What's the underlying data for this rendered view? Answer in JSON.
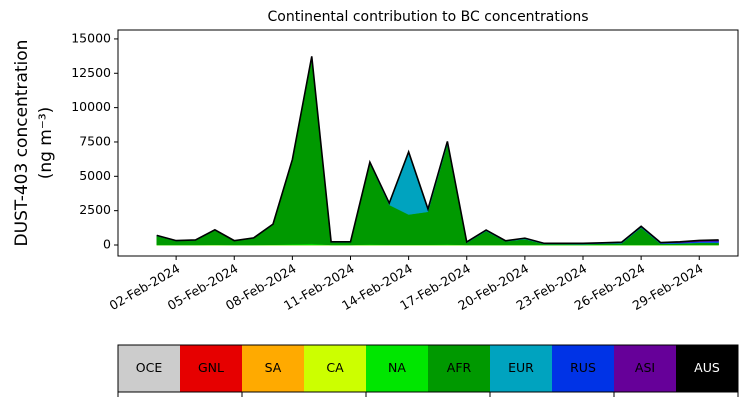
{
  "chart_data": {
    "type": "stacked_area",
    "title": "Continental contribution to BC concentrations",
    "y_label": [
      "DUST-403 concentration",
      "(ng m⁻³)"
    ],
    "x": [
      "2024-02-01",
      "2024-02-02",
      "2024-02-03",
      "2024-02-04",
      "2024-02-05",
      "2024-02-06",
      "2024-02-07",
      "2024-02-08",
      "2024-02-09",
      "2024-02-10",
      "2024-02-11",
      "2024-02-12",
      "2024-02-13",
      "2024-02-14",
      "2024-02-15",
      "2024-02-16",
      "2024-02-17",
      "2024-02-18",
      "2024-02-19",
      "2024-02-20",
      "2024-02-21",
      "2024-02-22",
      "2024-02-23",
      "2024-02-24",
      "2024-02-25",
      "2024-02-26",
      "2024-02-27",
      "2024-02-28",
      "2024-02-29",
      "2024-03-01"
    ],
    "xlim": [
      "2024-01-30",
      "2024-03-02"
    ],
    "xticks": [
      {
        "value": "2024-02-02",
        "label": "02-Feb-2024"
      },
      {
        "value": "2024-02-05",
        "label": "05-Feb-2024"
      },
      {
        "value": "2024-02-08",
        "label": "08-Feb-2024"
      },
      {
        "value": "2024-02-11",
        "label": "11-Feb-2024"
      },
      {
        "value": "2024-02-14",
        "label": "14-Feb-2024"
      },
      {
        "value": "2024-02-17",
        "label": "17-Feb-2024"
      },
      {
        "value": "2024-02-20",
        "label": "20-Feb-2024"
      },
      {
        "value": "2024-02-23",
        "label": "23-Feb-2024"
      },
      {
        "value": "2024-02-26",
        "label": "26-Feb-2024"
      },
      {
        "value": "2024-02-29",
        "label": "29-Feb-2024"
      }
    ],
    "ylim": [
      -800,
      15650
    ],
    "yticks": [
      0,
      2500,
      5000,
      7500,
      10000,
      12500,
      15000
    ],
    "legend": "bottom",
    "series": [
      {
        "name": "OCE",
        "color": "#cccccc",
        "values": [
          0,
          0,
          0,
          0,
          0,
          0,
          0,
          0,
          0,
          0,
          0,
          0,
          0,
          0,
          0,
          0,
          0,
          0,
          0,
          0,
          0,
          0,
          0,
          0,
          0,
          0,
          0,
          0,
          0,
          0
        ]
      },
      {
        "name": "GNL",
        "color": "#e60000",
        "values": [
          0,
          0,
          0,
          0,
          0,
          0,
          0,
          0,
          0,
          0,
          0,
          0,
          0,
          0,
          0,
          0,
          0,
          0,
          0,
          0,
          0,
          0,
          0,
          0,
          0,
          0,
          0,
          0,
          0,
          0
        ]
      },
      {
        "name": "SA",
        "color": "#ffaa00",
        "values": [
          0,
          0,
          0,
          0,
          0,
          0,
          0,
          0,
          0,
          0,
          0,
          0,
          0,
          0,
          0,
          0,
          0,
          0,
          0,
          0,
          0,
          0,
          0,
          0,
          0,
          0,
          0,
          0,
          0,
          0
        ]
      },
      {
        "name": "CA",
        "color": "#ccff00",
        "values": [
          0,
          0,
          0,
          0,
          0,
          0,
          0,
          0,
          0,
          0,
          0,
          0,
          0,
          0,
          0,
          0,
          0,
          0,
          0,
          0,
          0,
          0,
          0,
          0,
          0,
          0,
          0,
          0,
          0,
          0
        ]
      },
      {
        "name": "NA",
        "color": "#00e600",
        "values": [
          10,
          10,
          10,
          20,
          10,
          10,
          20,
          50,
          80,
          10,
          10,
          40,
          20,
          20,
          20,
          40,
          10,
          10,
          10,
          10,
          10,
          10,
          10,
          10,
          10,
          10,
          10,
          10,
          10,
          10
        ]
      },
      {
        "name": "AFR",
        "color": "#009900",
        "values": [
          650,
          280,
          330,
          1050,
          280,
          480,
          1450,
          6100,
          13500,
          180,
          180,
          5900,
          2900,
          2200,
          2400,
          7300,
          150,
          1000,
          250,
          420,
          60,
          60,
          50,
          90,
          120,
          1250,
          80,
          100,
          150,
          150
        ]
      },
      {
        "name": "EUR",
        "color": "#00a3bf",
        "values": [
          20,
          10,
          10,
          20,
          10,
          10,
          30,
          50,
          100,
          20,
          20,
          60,
          100,
          4500,
          150,
          150,
          30,
          50,
          20,
          40,
          20,
          20,
          20,
          20,
          20,
          30,
          20,
          20,
          30,
          30
        ]
      },
      {
        "name": "RUS",
        "color": "#0033e6",
        "values": [
          10,
          10,
          10,
          10,
          10,
          10,
          10,
          20,
          30,
          10,
          10,
          20,
          20,
          40,
          30,
          30,
          20,
          20,
          20,
          20,
          20,
          20,
          20,
          20,
          30,
          30,
          30,
          40,
          60,
          80
        ]
      },
      {
        "name": "ASI",
        "color": "#660099",
        "values": [
          10,
          10,
          10,
          10,
          10,
          10,
          10,
          10,
          20,
          10,
          10,
          10,
          10,
          20,
          20,
          20,
          10,
          10,
          10,
          10,
          10,
          10,
          20,
          20,
          30,
          40,
          40,
          60,
          80,
          100
        ]
      },
      {
        "name": "AUS",
        "color": "#000000",
        "values": [
          0,
          0,
          0,
          0,
          0,
          0,
          0,
          0,
          0,
          0,
          0,
          0,
          0,
          0,
          0,
          0,
          0,
          0,
          0,
          0,
          0,
          0,
          0,
          0,
          0,
          0,
          0,
          0,
          0,
          0
        ]
      }
    ]
  }
}
